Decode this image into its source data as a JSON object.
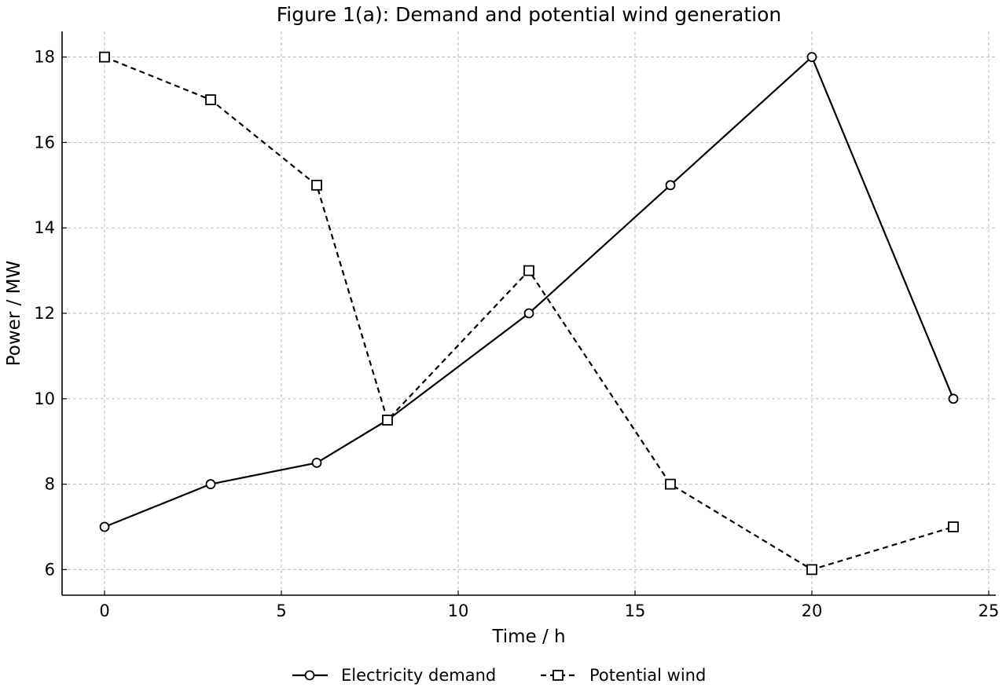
{
  "chart_data": {
    "type": "line",
    "title": "Figure 1(a): Demand and potential wind generation",
    "xlabel": "Time / h",
    "ylabel": "Power / MW",
    "xlim": [
      -1.2,
      25.2
    ],
    "ylim": [
      5.4,
      18.6
    ],
    "xticks": [
      0,
      5,
      10,
      15,
      20,
      25
    ],
    "yticks": [
      6,
      8,
      10,
      12,
      14,
      16,
      18
    ],
    "grid": true,
    "legend_position": "bottom-center",
    "series": [
      {
        "name": "Electricity demand",
        "marker": "circle",
        "line_style": "solid",
        "color": "#000000",
        "x": [
          0,
          3,
          6,
          8,
          12,
          16,
          20,
          24
        ],
        "y": [
          7,
          8,
          8.5,
          9.5,
          12,
          15,
          18,
          10
        ]
      },
      {
        "name": "Potential wind",
        "marker": "square",
        "line_style": "dashed",
        "color": "#000000",
        "x": [
          0,
          3,
          6,
          8,
          12,
          16,
          20,
          24
        ],
        "y": [
          18,
          17,
          15,
          9.5,
          13,
          8,
          6,
          7
        ]
      }
    ]
  }
}
